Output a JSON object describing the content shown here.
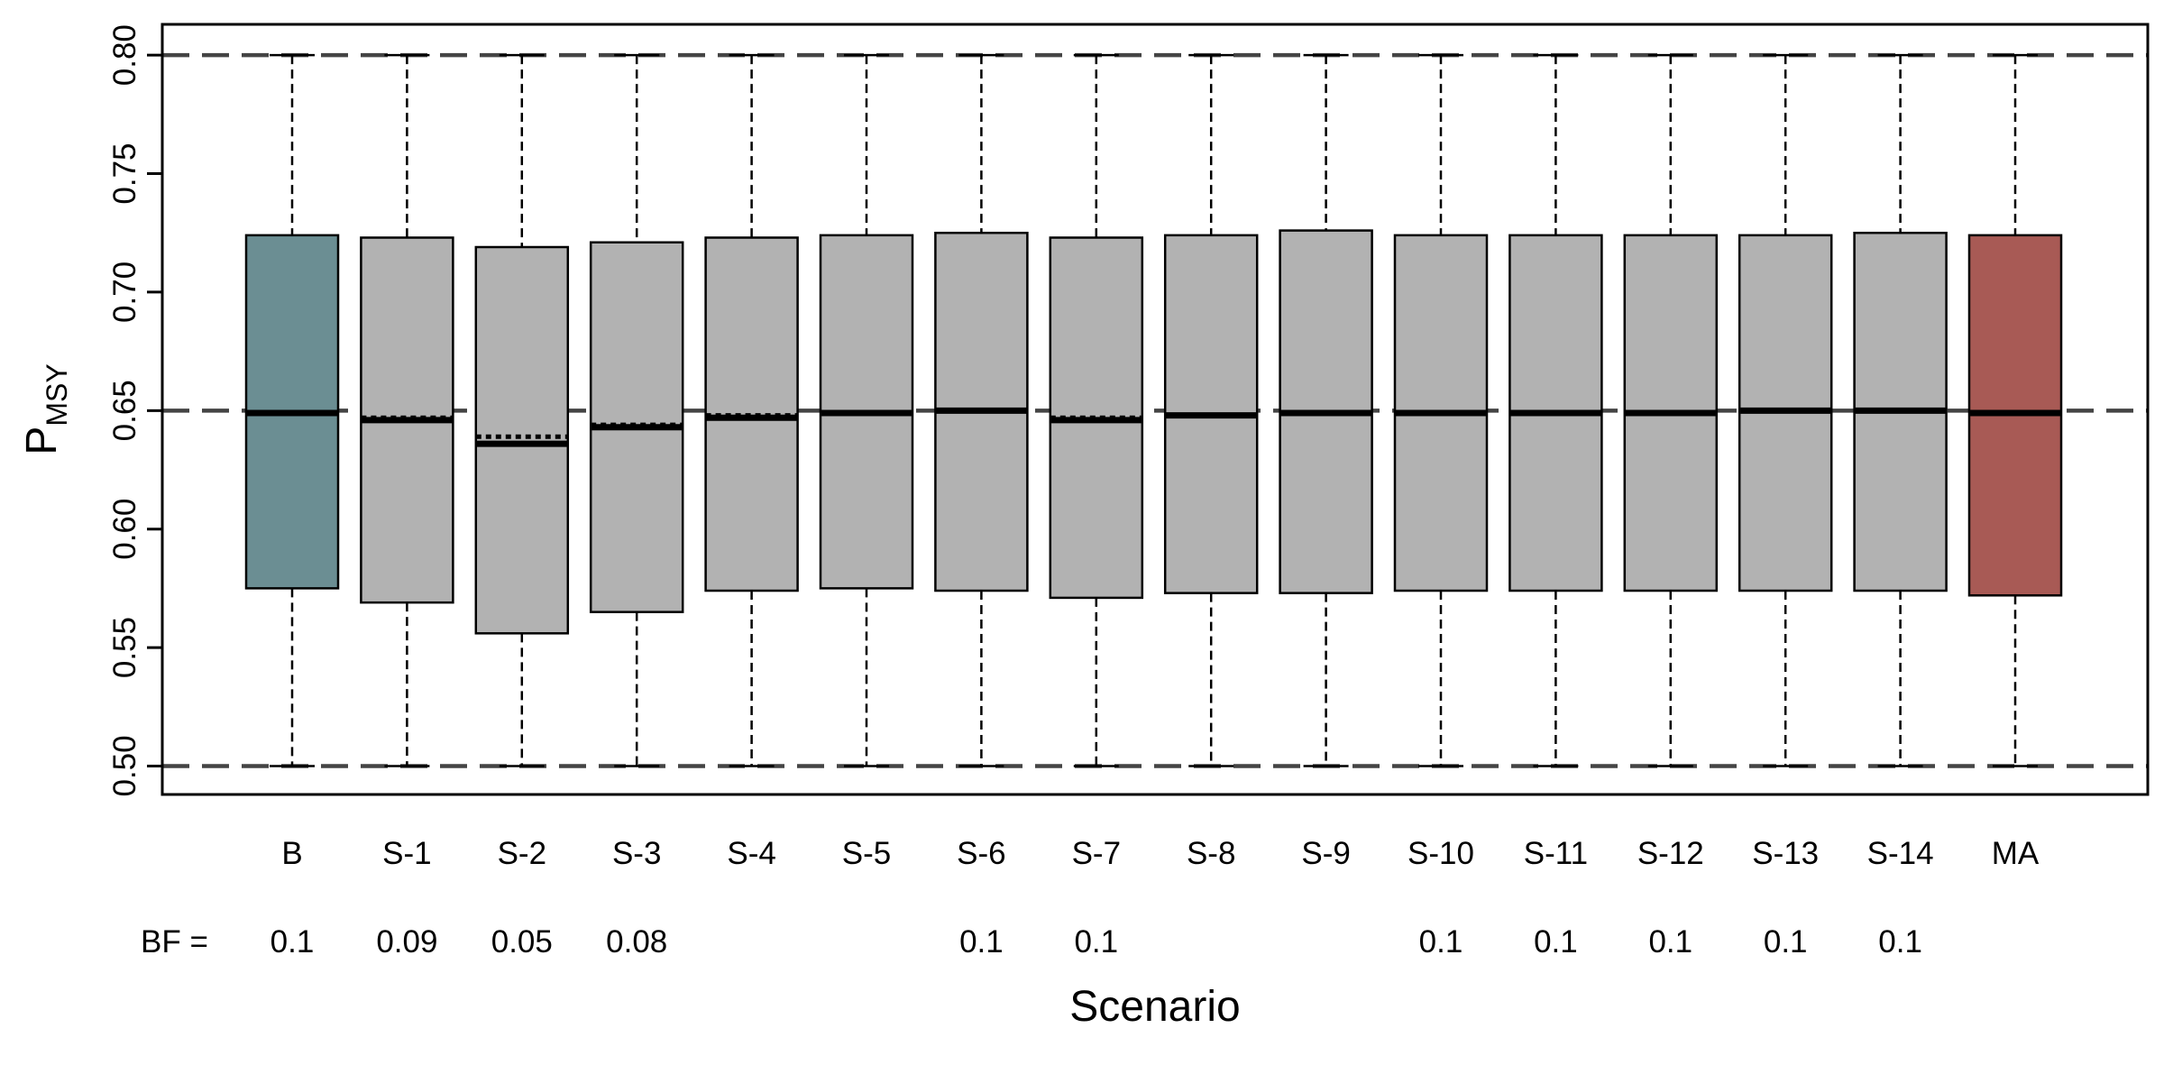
{
  "chart_data": {
    "type": "boxplot",
    "xlabel": "Scenario",
    "ylabel": "P",
    "ylabel_sub": "MSY",
    "ylim": [
      0.488,
      0.813
    ],
    "yticks": [
      "0.50",
      "0.55",
      "0.60",
      "0.65",
      "0.70",
      "0.75",
      "0.80"
    ],
    "reference_lines": [
      0.5,
      0.65,
      0.8
    ],
    "bf_prefix": "BF =",
    "colors": {
      "B": "#6b8e93",
      "MA": "#a85a55",
      "default": "#b2b2b2"
    },
    "boxes": [
      {
        "label": "B",
        "min": 0.5,
        "q1": 0.575,
        "median": 0.649,
        "mean": 0.649,
        "q3": 0.724,
        "max": 0.8,
        "bf": "0.1"
      },
      {
        "label": "S-1",
        "min": 0.5,
        "q1": 0.569,
        "median": 0.646,
        "mean": 0.647,
        "q3": 0.723,
        "max": 0.8,
        "bf": "0.09"
      },
      {
        "label": "S-2",
        "min": 0.5,
        "q1": 0.556,
        "median": 0.636,
        "mean": 0.639,
        "q3": 0.719,
        "max": 0.8,
        "bf": "0.05"
      },
      {
        "label": "S-3",
        "min": 0.5,
        "q1": 0.565,
        "median": 0.643,
        "mean": 0.644,
        "q3": 0.721,
        "max": 0.8,
        "bf": "0.08"
      },
      {
        "label": "S-4",
        "min": 0.5,
        "q1": 0.574,
        "median": 0.647,
        "mean": 0.648,
        "q3": 0.723,
        "max": 0.8,
        "bf": ""
      },
      {
        "label": "S-5",
        "min": 0.5,
        "q1": 0.575,
        "median": 0.649,
        "mean": 0.649,
        "q3": 0.724,
        "max": 0.8,
        "bf": ""
      },
      {
        "label": "S-6",
        "min": 0.5,
        "q1": 0.574,
        "median": 0.65,
        "mean": 0.65,
        "q3": 0.725,
        "max": 0.8,
        "bf": "0.1"
      },
      {
        "label": "S-7",
        "min": 0.5,
        "q1": 0.571,
        "median": 0.646,
        "mean": 0.647,
        "q3": 0.723,
        "max": 0.8,
        "bf": "0.1"
      },
      {
        "label": "S-8",
        "min": 0.5,
        "q1": 0.573,
        "median": 0.648,
        "mean": 0.648,
        "q3": 0.724,
        "max": 0.8,
        "bf": ""
      },
      {
        "label": "S-9",
        "min": 0.5,
        "q1": 0.573,
        "median": 0.649,
        "mean": 0.649,
        "q3": 0.726,
        "max": 0.8,
        "bf": ""
      },
      {
        "label": "S-10",
        "min": 0.5,
        "q1": 0.574,
        "median": 0.649,
        "mean": 0.649,
        "q3": 0.724,
        "max": 0.8,
        "bf": "0.1"
      },
      {
        "label": "S-11",
        "min": 0.5,
        "q1": 0.574,
        "median": 0.649,
        "mean": 0.649,
        "q3": 0.724,
        "max": 0.8,
        "bf": "0.1"
      },
      {
        "label": "S-12",
        "min": 0.5,
        "q1": 0.574,
        "median": 0.649,
        "mean": 0.649,
        "q3": 0.724,
        "max": 0.8,
        "bf": "0.1"
      },
      {
        "label": "S-13",
        "min": 0.5,
        "q1": 0.574,
        "median": 0.65,
        "mean": 0.65,
        "q3": 0.724,
        "max": 0.8,
        "bf": "0.1"
      },
      {
        "label": "S-14",
        "min": 0.5,
        "q1": 0.574,
        "median": 0.65,
        "mean": 0.65,
        "q3": 0.725,
        "max": 0.8,
        "bf": "0.1"
      },
      {
        "label": "MA",
        "min": 0.5,
        "q1": 0.572,
        "median": 0.649,
        "mean": 0.649,
        "q3": 0.724,
        "max": 0.8,
        "bf": ""
      }
    ]
  }
}
